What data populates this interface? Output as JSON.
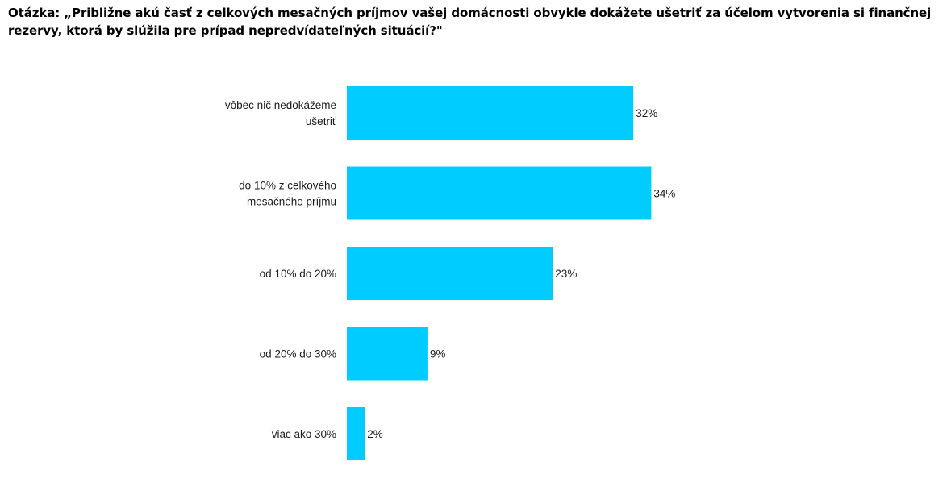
{
  "chart_data": {
    "type": "bar",
    "orientation": "horizontal",
    "title": "Otázka: „Približne akú časť z celkových mesačných príjmov vašej domácnosti obvykle dokážete ušetriť za účelom vytvorenia si finančnej rezervy, ktorá by slúžila pre prípad nepredvídateľných situácií?\"",
    "categories": [
      [
        "vôbec nič nedokážeme",
        "ušetriť"
      ],
      [
        "do 10% z celkového",
        "mesačného príjmu"
      ],
      [
        "od 10% do 20%"
      ],
      [
        "od 20% do 30%"
      ],
      [
        "viac ako 30%"
      ]
    ],
    "values": [
      32,
      34,
      23,
      9,
      2
    ],
    "value_labels": [
      "32%",
      "34%",
      "23%",
      "9%",
      "2%"
    ],
    "unit": "%",
    "bar_color": "#00CCFF",
    "grid": false,
    "legend": "none"
  }
}
